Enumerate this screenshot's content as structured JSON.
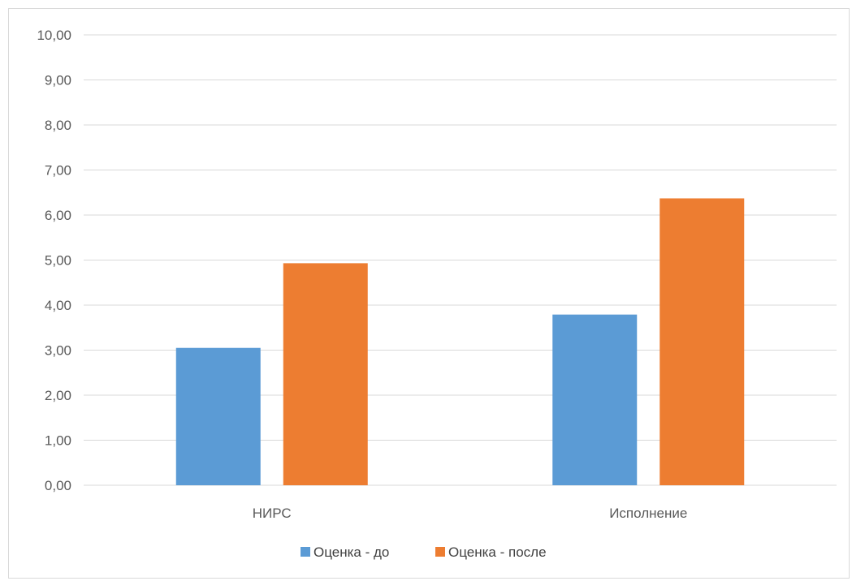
{
  "chart_data": {
    "type": "bar",
    "categories": [
      "НИРС",
      "Исполнение"
    ],
    "series": [
      {
        "name": "Оценка - до",
        "values": [
          3.05,
          3.79
        ],
        "color": "#5b9bd5"
      },
      {
        "name": "Оценка - после",
        "values": [
          4.93,
          6.37
        ],
        "color": "#ed7d31"
      }
    ],
    "ylim": [
      0,
      10
    ],
    "yticks": [
      "0,00",
      "1,00",
      "2,00",
      "3,00",
      "4,00",
      "5,00",
      "6,00",
      "7,00",
      "8,00",
      "9,00",
      "10,00"
    ],
    "grid": true,
    "legend_position": "bottom",
    "gridline_color": "#d9d9d9"
  }
}
